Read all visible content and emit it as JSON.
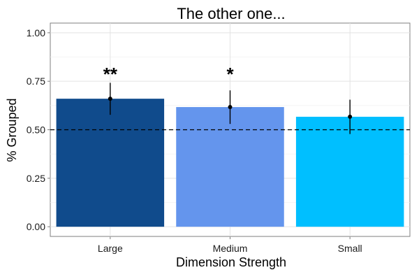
{
  "chart_data": {
    "type": "bar",
    "title": "The other one...",
    "xlabel": "Dimension Strength",
    "ylabel": "% Grouped",
    "categories": [
      "Large",
      "Medium",
      "Small"
    ],
    "values": [
      0.66,
      0.617,
      0.567
    ],
    "error_low": [
      0.577,
      0.53,
      0.478
    ],
    "error_high": [
      0.742,
      0.703,
      0.655
    ],
    "annotations": [
      "**",
      "*",
      ""
    ],
    "ylim": [
      -0.05,
      1.05
    ],
    "yticks": [
      0.0,
      0.25,
      0.5,
      0.75,
      1.0
    ],
    "ytick_labels": [
      "0.00",
      "0.25",
      "0.50",
      "0.75",
      "1.00"
    ],
    "reference_line": 0.5,
    "grid": true,
    "colors": [
      "#104b8c",
      "#6495ed",
      "#00bfff"
    ]
  }
}
